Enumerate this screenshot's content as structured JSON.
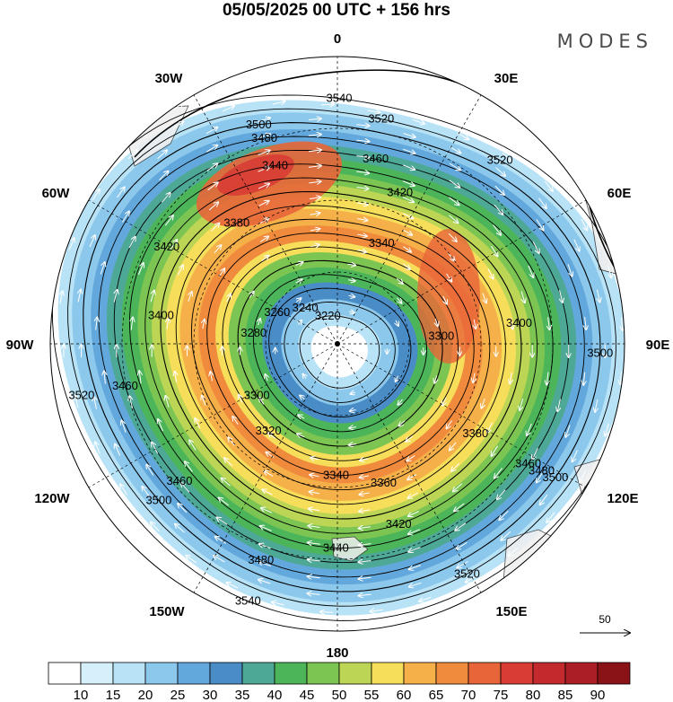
{
  "title": "05/05/2025  00 UTC  + 156 hrs",
  "brand": "MODES",
  "map": {
    "projection": "polar-stereographic-south",
    "longitude_labels": {
      "top": "0",
      "top_left": "30W",
      "top_right": "30E",
      "upper_left": "60W",
      "upper_right": "60E",
      "left": "90W",
      "right": "90E",
      "lower_left": "120W",
      "lower_right": "120E",
      "bottom_left": "150W",
      "bottom_right": "150E",
      "bottom": "180"
    },
    "contour_levels": [
      3220,
      3240,
      3260,
      3280,
      3300,
      3320,
      3340,
      3360,
      3380,
      3400,
      3420,
      3440,
      3460,
      3480,
      3500,
      3520,
      3540
    ],
    "contour_labels": [
      "3540",
      "3540",
      "3520",
      "3520",
      "3520",
      "3520",
      "3500",
      "3500",
      "3500",
      "3500",
      "3480",
      "3480",
      "3480",
      "3460",
      "3460",
      "3460",
      "3460",
      "3440",
      "3440",
      "3420",
      "3420",
      "3420",
      "3400",
      "3400",
      "3380",
      "3380",
      "3360",
      "3340",
      "3340",
      "3320",
      "3300",
      "3300",
      "3280",
      "3260",
      "3240",
      "3220"
    ],
    "wind_reference_label": "50"
  },
  "colorbar": {
    "ticks": [
      "10",
      "15",
      "20",
      "25",
      "30",
      "35",
      "40",
      "45",
      "50",
      "55",
      "60",
      "65",
      "70",
      "75",
      "80",
      "85",
      "90"
    ],
    "colors": [
      "#ffffff",
      "#d6f0fb",
      "#b8e2f6",
      "#8cc8ec",
      "#63a8dc",
      "#4a8cc6",
      "#4ea896",
      "#4cb55a",
      "#7cc552",
      "#bcd555",
      "#f6dd5a",
      "#f5b04a",
      "#f08a3c",
      "#e8653a",
      "#d83c34",
      "#c22a2e",
      "#ac1e26",
      "#8a1318"
    ]
  }
}
